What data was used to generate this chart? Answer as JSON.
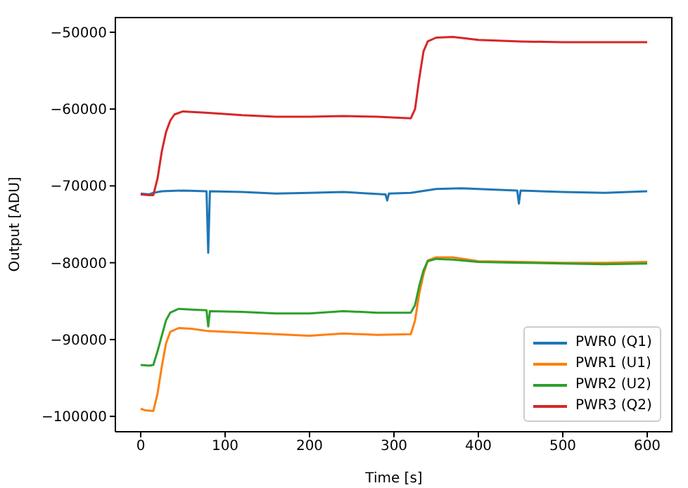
{
  "chart_data": {
    "type": "line",
    "xlabel": "Time [s]",
    "ylabel": "Output [ADU]",
    "xlim": [
      -30,
      630
    ],
    "xticks": [
      0,
      100,
      200,
      300,
      400,
      500,
      600
    ],
    "ylim": [
      -102000,
      -48000
    ],
    "yticks": [
      -100000,
      -90000,
      -80000,
      -70000,
      -60000,
      -50000
    ],
    "legend": "bottom right",
    "grid": false,
    "marker": "none",
    "line_style": "solid",
    "series": [
      {
        "name": "PWR0 (Q1)",
        "color": "#1f77b4",
        "x": [
          0,
          10,
          15,
          25,
          50,
          78,
          80,
          82,
          120,
          160,
          200,
          240,
          290,
          292,
          294,
          320,
          350,
          380,
          420,
          446,
          448,
          450,
          500,
          550,
          600
        ],
        "values": [
          -71000,
          -71100,
          -70900,
          -70700,
          -70600,
          -70700,
          -78700,
          -70700,
          -70800,
          -71000,
          -70900,
          -70800,
          -71100,
          -71900,
          -71000,
          -70900,
          -70400,
          -70300,
          -70500,
          -70600,
          -72300,
          -70600,
          -70800,
          -70900,
          -70700
        ]
      },
      {
        "name": "PWR1 (U1)",
        "color": "#ff7f0e",
        "x": [
          0,
          5,
          15,
          20,
          25,
          30,
          35,
          45,
          60,
          80,
          120,
          160,
          200,
          240,
          280,
          320,
          325,
          330,
          335,
          340,
          350,
          370,
          400,
          450,
          500,
          550,
          600
        ],
        "values": [
          -99000,
          -99200,
          -99300,
          -97000,
          -93500,
          -90500,
          -89000,
          -88500,
          -88600,
          -88900,
          -89100,
          -89300,
          -89500,
          -89200,
          -89400,
          -89300,
          -87500,
          -84000,
          -81500,
          -79700,
          -79300,
          -79300,
          -79800,
          -79900,
          -80000,
          -80000,
          -79900
        ]
      },
      {
        "name": "PWR2 (U2)",
        "color": "#2ca02c",
        "x": [
          0,
          10,
          15,
          20,
          25,
          30,
          35,
          45,
          60,
          78,
          80,
          82,
          120,
          160,
          200,
          240,
          280,
          320,
          325,
          330,
          335,
          340,
          350,
          370,
          400,
          450,
          500,
          550,
          600
        ],
        "values": [
          -93300,
          -93400,
          -93300,
          -91500,
          -89500,
          -87500,
          -86500,
          -86000,
          -86100,
          -86200,
          -88300,
          -86300,
          -86400,
          -86600,
          -86600,
          -86300,
          -86500,
          -86500,
          -85500,
          -83000,
          -81000,
          -79800,
          -79500,
          -79600,
          -79900,
          -80000,
          -80100,
          -80200,
          -80100
        ]
      },
      {
        "name": "PWR3 (Q2)",
        "color": "#d62728",
        "x": [
          0,
          10,
          15,
          20,
          25,
          30,
          35,
          40,
          50,
          80,
          120,
          160,
          200,
          240,
          280,
          320,
          325,
          330,
          335,
          340,
          350,
          370,
          400,
          450,
          500,
          550,
          600
        ],
        "values": [
          -71100,
          -71200,
          -71200,
          -69000,
          -65500,
          -63000,
          -61500,
          -60700,
          -60300,
          -60500,
          -60800,
          -61000,
          -61000,
          -60900,
          -61000,
          -61200,
          -60000,
          -56000,
          -52500,
          -51200,
          -50700,
          -50600,
          -51000,
          -51200,
          -51300,
          -51300,
          -51300
        ]
      }
    ]
  }
}
